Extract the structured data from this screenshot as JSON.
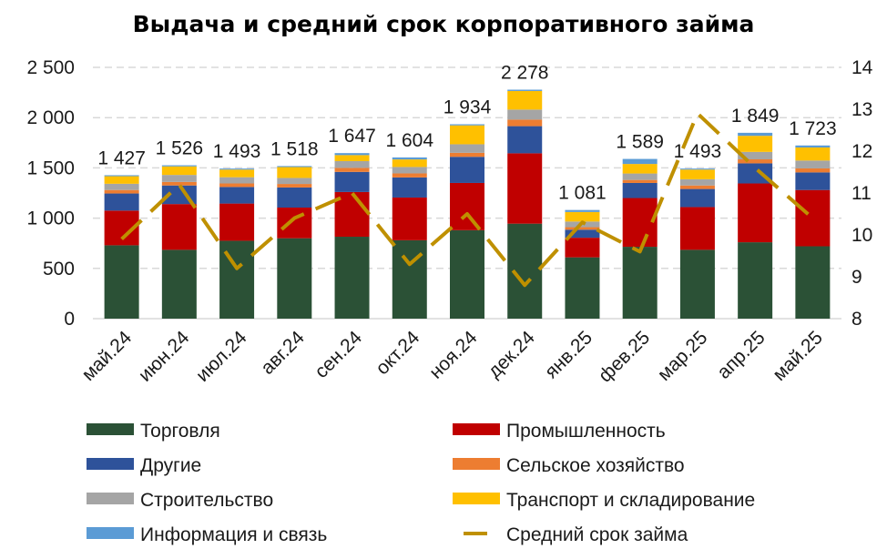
{
  "chart_data": {
    "type": "bar",
    "stacked": true,
    "title": "Выдача и средний срок корпоративного займа",
    "categories": [
      "май.24",
      "июн.24",
      "июл.24",
      "авг.24",
      "сен.24",
      "окт.24",
      "ноя.24",
      "дек.24",
      "янв.25",
      "фев.25",
      "мар.25",
      "апр.25",
      "май.25"
    ],
    "totals": [
      1427,
      1526,
      1493,
      1518,
      1647,
      1604,
      1934,
      2278,
      1081,
      1589,
      1493,
      1849,
      1723
    ],
    "total_labels": [
      "1 427",
      "1 526",
      "1 493",
      "1 518",
      "1 647",
      "1 604",
      "1 934",
      "2 278",
      "1 081",
      "1 589",
      "1 493",
      "1 849",
      "1 723"
    ],
    "series": [
      {
        "name": "Торговля",
        "color": "#2b5136",
        "values": [
          730,
          685,
          775,
          800,
          815,
          780,
          880,
          945,
          610,
          715,
          685,
          760,
          720
        ]
      },
      {
        "name": "Промышленность",
        "color": "#c00000",
        "values": [
          345,
          455,
          370,
          305,
          445,
          425,
          470,
          700,
          195,
          485,
          425,
          585,
          560
        ]
      },
      {
        "name": "Другие",
        "color": "#2e529a",
        "values": [
          170,
          185,
          165,
          200,
          200,
          200,
          260,
          270,
          80,
          150,
          180,
          200,
          175
        ]
      },
      {
        "name": "Сельское хозяйство",
        "color": "#ed7d31",
        "values": [
          35,
          35,
          35,
          35,
          40,
          40,
          40,
          65,
          25,
          30,
          35,
          40,
          40
        ]
      },
      {
        "name": "Строительство",
        "color": "#a5a5a5",
        "values": [
          62,
          70,
          62,
          60,
          67,
          64,
          85,
          100,
          56,
          64,
          62,
          74,
          78
        ]
      },
      {
        "name": "Транспорт и складирование",
        "color": "#ffc000",
        "values": [
          75,
          85,
          76,
          108,
          60,
          75,
          188,
          185,
          95,
          95,
          96,
          160,
          130
        ]
      },
      {
        "name": "Информация и связь",
        "color": "#5b9bd5",
        "values": [
          10,
          11,
          10,
          10,
          20,
          20,
          11,
          13,
          20,
          50,
          10,
          30,
          20
        ]
      }
    ],
    "line_series": {
      "name": "Средний срок займа",
      "color": "#bf9000",
      "axis": "right",
      "values": [
        9.9,
        11.2,
        9.2,
        10.4,
        11.0,
        9.3,
        10.5,
        8.8,
        10.3,
        9.6,
        12.9,
        11.6,
        10.4
      ]
    },
    "yticks_left": [
      "0",
      "500",
      "1 000",
      "1 500",
      "2 000",
      "2 500"
    ],
    "ylim_left": [
      0,
      2500
    ],
    "yticks_right": [
      "8",
      "9",
      "10",
      "11",
      "12",
      "13",
      "14"
    ],
    "ylim_right": [
      8,
      14
    ],
    "grid": true,
    "legend_position": "bottom"
  }
}
